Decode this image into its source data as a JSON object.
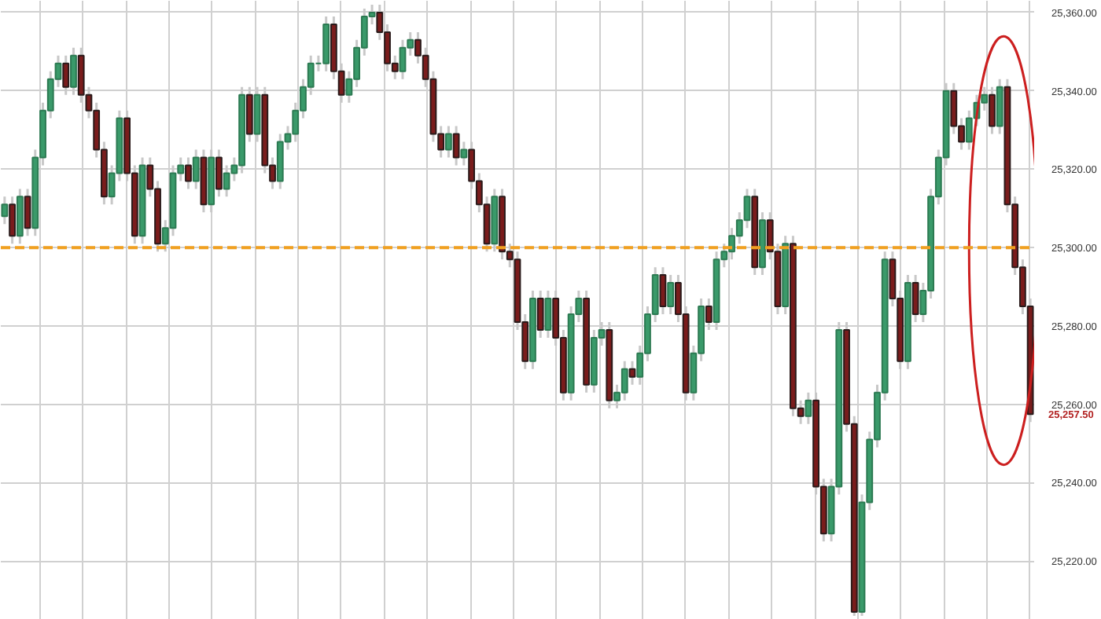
{
  "chart_data": {
    "type": "candlestick",
    "categories": [
      null,
      null,
      null,
      null,
      null,
      null,
      null,
      null,
      null,
      null,
      null,
      null,
      null,
      null,
      null,
      null,
      null,
      null,
      null,
      null,
      null,
      null,
      null,
      null,
      null,
      null,
      null,
      null,
      null,
      null,
      null,
      null,
      null,
      null,
      null,
      null,
      null,
      null,
      null,
      null,
      null,
      null,
      null,
      null,
      null,
      null,
      null,
      null,
      null,
      null,
      null,
      null,
      null,
      null,
      null,
      null,
      null,
      null,
      null,
      null,
      null,
      null,
      null,
      null,
      null,
      null,
      null,
      null,
      null,
      null,
      null,
      null,
      null,
      null,
      null,
      null,
      null,
      null,
      null,
      null,
      null,
      null,
      null,
      null,
      null,
      null,
      null,
      null,
      null,
      null,
      null,
      null,
      null,
      null,
      null,
      null,
      null,
      null,
      null,
      null,
      null,
      null,
      null,
      null,
      null,
      null,
      null,
      null,
      null,
      null,
      null,
      null,
      null,
      null,
      null,
      null,
      null,
      null,
      null,
      null,
      null,
      null,
      null,
      null,
      null,
      null,
      null,
      null,
      null,
      null,
      null,
      null,
      null,
      null,
      null
    ],
    "ohlc": [
      [
        25308,
        25313,
        25306,
        25311
      ],
      [
        25311,
        25313,
        25301,
        25303
      ],
      [
        25303,
        25315,
        25301,
        25313
      ],
      [
        25313,
        25315,
        25303,
        25305
      ],
      [
        25305,
        25325,
        25303,
        25323
      ],
      [
        25323,
        25337,
        25321,
        25335
      ],
      [
        25335,
        25345,
        25333,
        25343
      ],
      [
        25343,
        25349,
        25341,
        25347
      ],
      [
        25347,
        25349,
        25339,
        25341
      ],
      [
        25341,
        25351,
        25339,
        25349
      ],
      [
        25349,
        25351,
        25337,
        25339
      ],
      [
        25339,
        25341,
        25333,
        25335
      ],
      [
        25335,
        25337,
        25323,
        25325
      ],
      [
        25325,
        25327,
        25311,
        25313
      ],
      [
        25313,
        25321,
        25311,
        25319
      ],
      [
        25319,
        25335,
        25317,
        25333
      ],
      [
        25333,
        25335,
        25317,
        25319
      ],
      [
        25319,
        25321,
        25301,
        25303
      ],
      [
        25303,
        25323,
        25301,
        25321
      ],
      [
        25321,
        25323,
        25313,
        25315
      ],
      [
        25315,
        25317,
        25299,
        25301
      ],
      [
        25301,
        25307,
        25299,
        25305
      ],
      [
        25305,
        25321,
        25303,
        25319
      ],
      [
        25319,
        25323,
        25317,
        25321
      ],
      [
        25321,
        25323,
        25315,
        25317
      ],
      [
        25317,
        25325,
        25315,
        25323
      ],
      [
        25323,
        25325,
        25309,
        25311
      ],
      [
        25311,
        25325,
        25309,
        25323
      ],
      [
        25323,
        25325,
        25313,
        25315
      ],
      [
        25315,
        25321,
        25313,
        25319
      ],
      [
        25319,
        25323,
        25317,
        25321
      ],
      [
        25321,
        25341,
        25319,
        25339
      ],
      [
        25339,
        25341,
        25327,
        25329
      ],
      [
        25329,
        25341,
        25327,
        25339
      ],
      [
        25339,
        25341,
        25319,
        25321
      ],
      [
        25321,
        25323,
        25315,
        25317
      ],
      [
        25317,
        25329,
        25315,
        25327
      ],
      [
        25327,
        25331,
        25325,
        25329
      ],
      [
        25329,
        25337,
        25327,
        25335
      ],
      [
        25335,
        25343,
        25333,
        25341
      ],
      [
        25341,
        25349,
        25339,
        25347
      ],
      [
        25347,
        25349,
        25345,
        25347
      ],
      [
        25347,
        25359,
        25345,
        25357
      ],
      [
        25357,
        25359,
        25343,
        25345
      ],
      [
        25345,
        25347,
        25337,
        25339
      ],
      [
        25339,
        25345,
        25337,
        25343
      ],
      [
        25343,
        25353,
        25341,
        25351
      ],
      [
        25351,
        25361,
        25349,
        25359
      ],
      [
        25359,
        25362,
        25357,
        25360
      ],
      [
        25360,
        25362,
        25353,
        25355
      ],
      [
        25355,
        25357,
        25345,
        25347
      ],
      [
        25347,
        25349,
        25343,
        25345
      ],
      [
        25345,
        25353,
        25343,
        25351
      ],
      [
        25351,
        25355,
        25349,
        25353
      ],
      [
        25353,
        25355,
        25347,
        25349
      ],
      [
        25349,
        25351,
        25341,
        25343
      ],
      [
        25343,
        25345,
        25327,
        25329
      ],
      [
        25329,
        25331,
        25323,
        25325
      ],
      [
        25325,
        25331,
        25323,
        25329
      ],
      [
        25329,
        25331,
        25321,
        25323
      ],
      [
        25323,
        25327,
        25321,
        25325
      ],
      [
        25325,
        25327,
        25315,
        25317
      ],
      [
        25317,
        25319,
        25309,
        25311
      ],
      [
        25311,
        25313,
        25299,
        25301
      ],
      [
        25301,
        25315,
        25299,
        25313
      ],
      [
        25313,
        25315,
        25297,
        25299
      ],
      [
        25299,
        25301,
        25295,
        25297
      ],
      [
        25297,
        25299,
        25279,
        25281
      ],
      [
        25281,
        25283,
        25269,
        25271
      ],
      [
        25271,
        25289,
        25269,
        25287
      ],
      [
        25287,
        25289,
        25277,
        25279
      ],
      [
        25279,
        25289,
        25277,
        25287
      ],
      [
        25287,
        25289,
        25275,
        25277
      ],
      [
        25277,
        25279,
        25261,
        25263
      ],
      [
        25263,
        25285,
        25261,
        25283
      ],
      [
        25283,
        25289,
        25281,
        25287
      ],
      [
        25287,
        25289,
        25263,
        25265
      ],
      [
        25265,
        25279,
        25263,
        25277
      ],
      [
        25277,
        25281,
        25275,
        25279
      ],
      [
        25279,
        25281,
        25259,
        25261
      ],
      [
        25261,
        25265,
        25259,
        25263
      ],
      [
        25263,
        25271,
        25261,
        25269
      ],
      [
        25269,
        25271,
        25265,
        25267
      ],
      [
        25267,
        25275,
        25265,
        25273
      ],
      [
        25273,
        25285,
        25271,
        25283
      ],
      [
        25283,
        25295,
        25281,
        25293
      ],
      [
        25293,
        25295,
        25283,
        25285
      ],
      [
        25285,
        25293,
        25283,
        25291
      ],
      [
        25291,
        25293,
        25281,
        25283
      ],
      [
        25283,
        25285,
        25261,
        25263
      ],
      [
        25263,
        25275,
        25261,
        25273
      ],
      [
        25273,
        25287,
        25271,
        25285
      ],
      [
        25285,
        25287,
        25279,
        25281
      ],
      [
        25281,
        25299,
        25279,
        25297
      ],
      [
        25297,
        25301,
        25295,
        25299
      ],
      [
        25299,
        25305,
        25297,
        25303
      ],
      [
        25303,
        25309,
        25301,
        25307
      ],
      [
        25307,
        25315,
        25305,
        25313
      ],
      [
        25313,
        25315,
        25293,
        25295
      ],
      [
        25295,
        25309,
        25293,
        25307
      ],
      [
        25307,
        25309,
        25297,
        25299
      ],
      [
        25299,
        25301,
        25283,
        25285
      ],
      [
        25285,
        25303,
        25283,
        25301
      ],
      [
        25301,
        25303,
        25257,
        25259
      ],
      [
        25259,
        25261,
        25255,
        25257
      ],
      [
        25257,
        25263,
        25255,
        25261
      ],
      [
        25261,
        25263,
        25237,
        25239
      ],
      [
        25239,
        25241,
        25225,
        25227
      ],
      [
        25227,
        25241,
        25225,
        25239
      ],
      [
        25239,
        25281,
        25237,
        25279
      ],
      [
        25279,
        25281,
        25253,
        25255
      ],
      [
        25255,
        25257,
        25206,
        25207
      ],
      [
        25207,
        25237,
        25206,
        25235
      ],
      [
        25235,
        25253,
        25233,
        25251
      ],
      [
        25251,
        25265,
        25249,
        25263
      ],
      [
        25263,
        25299,
        25261,
        25297
      ],
      [
        25297,
        25299,
        25285,
        25287
      ],
      [
        25287,
        25289,
        25269,
        25271
      ],
      [
        25271,
        25293,
        25269,
        25291
      ],
      [
        25291,
        25293,
        25281,
        25283
      ],
      [
        25283,
        25291,
        25281,
        25289
      ],
      [
        25289,
        25315,
        25287,
        25313
      ],
      [
        25313,
        25325,
        25311,
        25323
      ],
      [
        25323,
        25342,
        25321,
        25340
      ],
      [
        25340,
        25342,
        25329,
        25331
      ],
      [
        25331,
        25333,
        25325,
        25327
      ],
      [
        25327,
        25335,
        25325,
        25333
      ],
      [
        25333,
        25339,
        25331,
        25337
      ],
      [
        25337,
        25341,
        25335,
        25339
      ],
      [
        25339,
        25341,
        25329,
        25331
      ],
      [
        25331,
        25343,
        25329,
        25341
      ],
      [
        25341,
        25343,
        25309,
        25311
      ],
      [
        25311,
        25313,
        25293,
        25295
      ],
      [
        25295,
        25297,
        25283,
        25285
      ],
      [
        25285,
        25287,
        25255.5,
        25257.5
      ]
    ],
    "ylim": [
      25205,
      25363
    ],
    "yticks": [
      {
        "value": 25220,
        "label": "25,220.00"
      },
      {
        "value": 25240,
        "label": "25,240.00"
      },
      {
        "value": 25260,
        "label": "25,260.00"
      },
      {
        "value": 25280,
        "label": "25,280.00"
      },
      {
        "value": 25300,
        "label": "25,300.00"
      },
      {
        "value": 25320,
        "label": "25,320.00"
      },
      {
        "value": 25340,
        "label": "25,340.00"
      },
      {
        "value": 25360,
        "label": "25,360.00"
      }
    ],
    "tick_labels": "y",
    "grid": true,
    "ref_lines": [
      {
        "axis": "y",
        "value": 25300,
        "color": "#f0a020",
        "line_style": "dashed"
      }
    ],
    "annotations": [
      "25,257.50"
    ]
  }
}
